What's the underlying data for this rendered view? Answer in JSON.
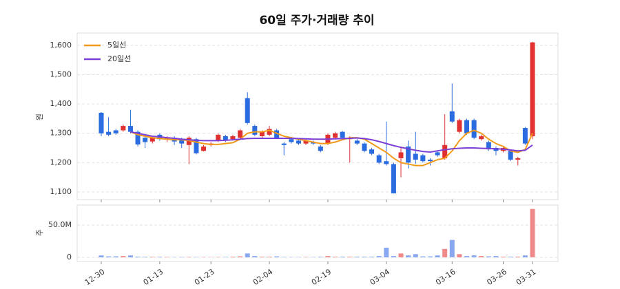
{
  "chart_data": [
    {
      "type": "candlestick",
      "title": "60일 주가·거래량 추이",
      "ylabel": "원",
      "open": [
        1370,
        1305,
        1310,
        1310,
        1325,
        1305,
        1285,
        1272,
        1295,
        1278,
        1282,
        1280,
        1260,
        1280,
        1240,
        1260,
        1275,
        1290,
        1280,
        1285,
        1420,
        1325,
        1290,
        1295,
        1310,
        1265,
        1280,
        1275,
        1265,
        1270,
        1255,
        1265,
        1285,
        1305,
        1280,
        1275,
        1265,
        1245,
        1225,
        1205,
        1195,
        1215,
        1255,
        1230,
        1225,
        1210,
        1235,
        1215,
        1375,
        1305,
        1345,
        1345,
        1280,
        1270,
        1250,
        1240,
        1240,
        1210,
        1318,
        1290
      ],
      "high": [
        1372,
        1355,
        1315,
        1330,
        1380,
        1310,
        1290,
        1290,
        1300,
        1290,
        1290,
        1285,
        1290,
        1285,
        1260,
        1270,
        1300,
        1295,
        1295,
        1315,
        1440,
        1330,
        1310,
        1325,
        1315,
        1270,
        1285,
        1280,
        1280,
        1275,
        1260,
        1300,
        1305,
        1308,
        1290,
        1280,
        1270,
        1250,
        1230,
        1340,
        1200,
        1255,
        1275,
        1305,
        1230,
        1215,
        1240,
        1365,
        1470,
        1350,
        1350,
        1350,
        1295,
        1275,
        1255,
        1255,
        1245,
        1220,
        1322,
        1612
      ],
      "low": [
        1290,
        1290,
        1295,
        1305,
        1300,
        1255,
        1250,
        1265,
        1275,
        1270,
        1260,
        1250,
        1195,
        1228,
        1238,
        1255,
        1270,
        1270,
        1275,
        1280,
        1330,
        1290,
        1285,
        1290,
        1280,
        1225,
        1265,
        1260,
        1260,
        1260,
        1235,
        1260,
        1280,
        1280,
        1200,
        1260,
        1235,
        1225,
        1195,
        1190,
        1095,
        1150,
        1180,
        1195,
        1200,
        1190,
        1220,
        1210,
        1335,
        1300,
        1295,
        1280,
        1275,
        1240,
        1225,
        1235,
        1205,
        1190,
        1260,
        1280
      ],
      "close": [
        1300,
        1295,
        1300,
        1325,
        1305,
        1262,
        1270,
        1285,
        1280,
        1285,
        1272,
        1265,
        1285,
        1232,
        1255,
        1265,
        1295,
        1275,
        1290,
        1310,
        1335,
        1295,
        1305,
        1315,
        1285,
        1260,
        1270,
        1265,
        1275,
        1265,
        1240,
        1295,
        1300,
        1285,
        1285,
        1265,
        1240,
        1230,
        1200,
        1195,
        1095,
        1235,
        1200,
        1210,
        1205,
        1205,
        1225,
        1260,
        1340,
        1345,
        1300,
        1285,
        1290,
        1245,
        1240,
        1250,
        1210,
        1215,
        1265,
        1610
      ],
      "up_color": "#e03131",
      "down_color": "#2b6be0",
      "series": [
        {
          "name": "5일선",
          "color": "#f29a1a",
          "values": [
            null,
            null,
            null,
            null,
            1305,
            1295,
            1290,
            1285,
            1282,
            1280,
            1278,
            1278,
            1275,
            1270,
            1265,
            1262,
            1262,
            1265,
            1268,
            1280,
            1300,
            1305,
            1305,
            1310,
            1300,
            1290,
            1285,
            1280,
            1275,
            1270,
            1265,
            1265,
            1270,
            1278,
            1285,
            1285,
            1280,
            1265,
            1250,
            1235,
            1215,
            1200,
            1195,
            1190,
            1190,
            1200,
            1210,
            1215,
            1240,
            1275,
            1300,
            1310,
            1300,
            1280,
            1265,
            1255,
            1240,
            1235,
            1245,
            1300
          ]
        },
        {
          "name": "20일선",
          "color": "#7b3fd6",
          "values": [
            null,
            null,
            null,
            null,
            1305,
            1300,
            1295,
            1290,
            1288,
            1285,
            1283,
            1280,
            1278,
            1276,
            1275,
            1275,
            1275,
            1276,
            1278,
            1280,
            1282,
            1283,
            1283,
            1283,
            1283,
            1283,
            1283,
            1282,
            1281,
            1280,
            1280,
            1280,
            1281,
            1282,
            1283,
            1284,
            1282,
            1278,
            1272,
            1265,
            1258,
            1252,
            1247,
            1242,
            1238,
            1236,
            1240,
            1244,
            1247,
            1249,
            1250,
            1250,
            1249,
            1248,
            1247,
            1246,
            1243,
            1240,
            1242,
            1260
          ]
        }
      ],
      "ylim": [
        1074,
        1642
      ],
      "yticks": [
        {
          "value": 1100,
          "label": "1,100"
        },
        {
          "value": 1200,
          "label": "1,200"
        },
        {
          "value": 1300,
          "label": "1,300"
        },
        {
          "value": 1400,
          "label": "1,400"
        },
        {
          "value": 1500,
          "label": "1,500"
        },
        {
          "value": 1600,
          "label": "1,600"
        }
      ],
      "grid": true,
      "legend": "upper left"
    },
    {
      "type": "bar",
      "ylabel": "주",
      "categories": [
        "12-30",
        null,
        null,
        null,
        null,
        null,
        null,
        null,
        "01-13",
        null,
        null,
        null,
        null,
        null,
        null,
        "01-23",
        null,
        null,
        null,
        null,
        null,
        null,
        null,
        "02-04",
        null,
        null,
        null,
        null,
        null,
        null,
        null,
        "02-19",
        null,
        null,
        null,
        null,
        null,
        null,
        null,
        "03-04",
        null,
        null,
        null,
        null,
        null,
        null,
        null,
        null,
        "03-16",
        null,
        null,
        null,
        null,
        null,
        null,
        "03-26",
        null,
        null,
        null,
        "03-31"
      ],
      "values": [
        3000000,
        1500000,
        1500000,
        2000000,
        3000000,
        1000000,
        800000,
        800000,
        800000,
        600000,
        500000,
        600000,
        600000,
        500000,
        500000,
        400000,
        600000,
        600000,
        1000000,
        1500000,
        6000000,
        2000000,
        1000000,
        1000000,
        1500000,
        600000,
        500000,
        500000,
        600000,
        500000,
        800000,
        2000000,
        1000000,
        1000000,
        1000000,
        1000000,
        1000000,
        1000000,
        2000000,
        15000000,
        2000000,
        6000000,
        3000000,
        5000000,
        1500000,
        1500000,
        3000000,
        13000000,
        27000000,
        5000000,
        2000000,
        3000000,
        2000000,
        1500000,
        2000000,
        1000000,
        1000000,
        1000000,
        3000000,
        75000000
      ],
      "up_color": "#f08a8a",
      "down_color": "#8aa8f0",
      "ylim": [
        -6400000,
        81000000
      ],
      "yticks": [
        0,
        {
          "value": 50000000,
          "label": "50.0M"
        }
      ],
      "grid": true
    }
  ]
}
